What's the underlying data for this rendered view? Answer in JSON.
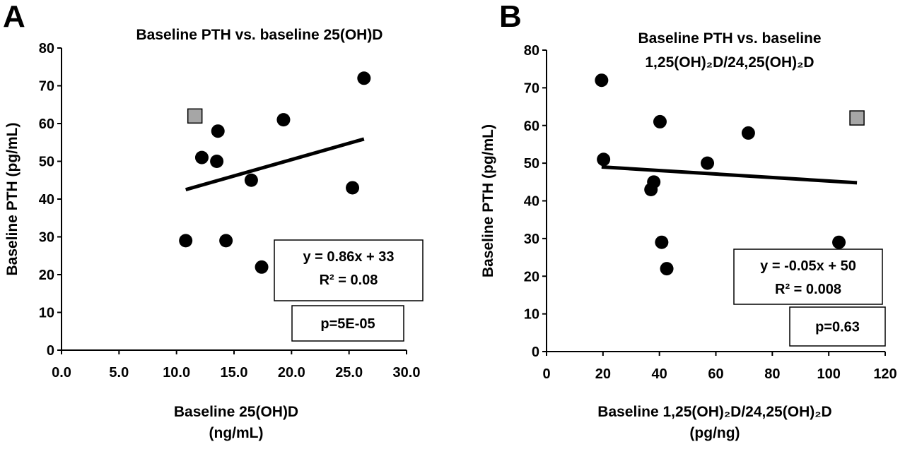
{
  "chart_data": [
    {
      "type": "scatter",
      "panel": "A",
      "title": "Baseline PTH vs. baseline 25(OH)D",
      "xlabel": [
        "Baseline 25(OH)D",
        "(ng/mL)"
      ],
      "ylabel": "Baseline PTH (pg/mL)",
      "xlim": [
        0,
        30
      ],
      "ylim": [
        0,
        80
      ],
      "xticks": [
        0,
        5,
        10,
        15,
        20,
        25,
        30
      ],
      "xtick_labels": [
        "0.0",
        "5.0",
        "10.0",
        "15.0",
        "20.0",
        "25.0",
        "30.0"
      ],
      "yticks": [
        0,
        10,
        20,
        30,
        40,
        50,
        60,
        70,
        80
      ],
      "ytick_labels": [
        "0",
        "10",
        "20",
        "30",
        "40",
        "50",
        "60",
        "70",
        "80"
      ],
      "grid": false,
      "points": [
        {
          "x": 10.8,
          "y": 29
        },
        {
          "x": 12.2,
          "y": 51
        },
        {
          "x": 13.5,
          "y": 50
        },
        {
          "x": 13.6,
          "y": 58
        },
        {
          "x": 14.3,
          "y": 29
        },
        {
          "x": 16.5,
          "y": 45
        },
        {
          "x": 17.4,
          "y": 22
        },
        {
          "x": 19.3,
          "y": 61
        },
        {
          "x": 25.3,
          "y": 43
        },
        {
          "x": 26.3,
          "y": 72
        }
      ],
      "highlight_points": [
        {
          "x": 11.6,
          "y": 62
        }
      ],
      "trendline": {
        "x": [
          10.8,
          26.3
        ],
        "y": [
          42.5,
          55.9
        ]
      },
      "equation": "y = 0.86x + 33",
      "r2": "R² = 0.08",
      "pvalue": "p=5E-05",
      "colors": {
        "points": "#000000",
        "highlight": "#a6a6a6"
      }
    },
    {
      "type": "scatter",
      "panel": "B",
      "title": [
        "Baseline PTH vs. baseline",
        "1,25(OH)₂D/24,25(OH)₂D"
      ],
      "xlabel": [
        "Baseline 1,25(OH)₂D/24,25(OH)₂D",
        "(pg/ng)"
      ],
      "ylabel": "Baseline PTH (pg/mL)",
      "xlim": [
        0,
        120
      ],
      "ylim": [
        0,
        80
      ],
      "xticks": [
        0,
        20,
        40,
        60,
        80,
        100,
        120
      ],
      "xtick_labels": [
        "0",
        "20",
        "40",
        "60",
        "80",
        "100",
        "120"
      ],
      "yticks": [
        0,
        10,
        20,
        30,
        40,
        50,
        60,
        70,
        80
      ],
      "ytick_labels": [
        "0",
        "10",
        "20",
        "30",
        "40",
        "50",
        "60",
        "70",
        "80"
      ],
      "grid": false,
      "points": [
        {
          "x": 19.5,
          "y": 72
        },
        {
          "x": 20.2,
          "y": 51
        },
        {
          "x": 37.0,
          "y": 43
        },
        {
          "x": 38.0,
          "y": 45
        },
        {
          "x": 40.2,
          "y": 61
        },
        {
          "x": 40.8,
          "y": 29
        },
        {
          "x": 42.6,
          "y": 22
        },
        {
          "x": 57.0,
          "y": 50
        },
        {
          "x": 71.5,
          "y": 58
        },
        {
          "x": 103.6,
          "y": 29
        }
      ],
      "highlight_points": [
        {
          "x": 110.0,
          "y": 62
        }
      ],
      "trendline": {
        "x": [
          19.5,
          110.0
        ],
        "y": [
          49.0,
          44.8
        ]
      },
      "equation": "y = -0.05x + 50",
      "r2": "R² = 0.008",
      "pvalue": "p=0.63",
      "colors": {
        "points": "#000000",
        "highlight": "#a6a6a6"
      }
    }
  ]
}
